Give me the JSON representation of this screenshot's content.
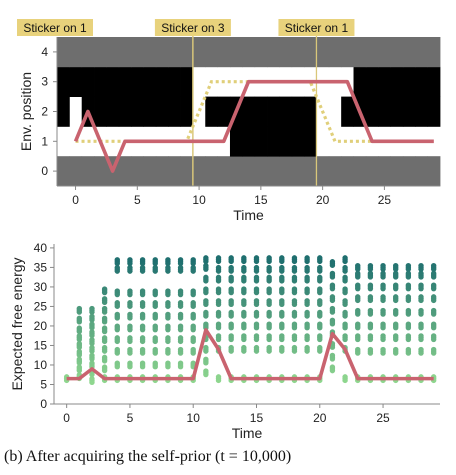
{
  "caption": "(b) After acquiring the self-prior (t = 10,000)",
  "colors": {
    "agent": "#c9636f",
    "target": "#e0cf7a",
    "sticker_line": "#d9c77a",
    "sticker_label_bg": "#e8d27c",
    "wall": "#6e6e6e",
    "obstacle": "#000000",
    "efe_low": "#8fd78f",
    "efe_high": "#1f6f6f"
  },
  "chart_data": [
    {
      "type": "heatmap",
      "name": "environment",
      "xlabel": "Time",
      "ylabel": "Env. position",
      "xlim": [
        -1.5,
        29.5
      ],
      "ylim": [
        -0.5,
        4.5
      ],
      "xticks": [
        0,
        5,
        10,
        15,
        20,
        25
      ],
      "yticks": [
        0,
        1,
        2,
        3,
        4
      ],
      "grid": false,
      "legend": "none",
      "cells": {
        "values_note": "rows = positions 0..4, columns = times -1..29; 0 = free, 1 = obstacle, 2 = wall",
        "rows": [
          [
            2,
            2,
            2,
            2,
            2,
            2,
            2,
            2,
            2,
            2,
            2,
            2,
            2,
            2,
            2,
            2,
            2,
            2,
            2,
            2,
            2,
            2,
            2,
            2,
            2,
            2,
            2,
            2,
            2,
            2,
            2
          ],
          [
            0,
            0,
            0,
            0,
            0,
            0,
            0,
            0,
            0,
            0,
            0,
            0,
            0,
            0,
            1,
            1,
            1,
            1,
            1,
            1,
            1,
            0,
            0,
            0,
            0,
            0,
            0,
            0,
            0,
            0,
            0
          ],
          [
            1,
            0,
            1,
            1,
            1,
            1,
            1,
            1,
            1,
            1,
            1,
            0,
            1,
            1,
            1,
            1,
            1,
            1,
            1,
            1,
            1,
            0,
            0,
            1,
            1,
            1,
            1,
            1,
            1,
            1,
            1
          ],
          [
            1,
            1,
            1,
            1,
            1,
            1,
            1,
            1,
            1,
            1,
            1,
            0,
            0,
            0,
            0,
            0,
            0,
            0,
            0,
            0,
            0,
            0,
            0,
            0,
            1,
            1,
            1,
            1,
            1,
            1,
            1
          ],
          [
            2,
            2,
            2,
            2,
            2,
            2,
            2,
            2,
            2,
            2,
            2,
            2,
            2,
            2,
            2,
            2,
            2,
            2,
            2,
            2,
            2,
            2,
            2,
            2,
            2,
            2,
            2,
            2,
            2,
            2,
            2
          ]
        ]
      },
      "series": [
        {
          "role": "agent",
          "x": [
            0,
            1,
            2,
            3,
            4,
            5,
            6,
            7,
            8,
            9,
            10,
            11,
            12,
            13,
            14,
            15,
            16,
            17,
            18,
            19,
            20,
            21,
            22,
            23,
            24,
            25,
            26,
            27,
            28,
            29
          ],
          "y": [
            1,
            2,
            1,
            0,
            1,
            1,
            1,
            1,
            1,
            1,
            1,
            1,
            1,
            2,
            3,
            3,
            3,
            3,
            3,
            3,
            3,
            3,
            3,
            2,
            1,
            1,
            1,
            1,
            1,
            1
          ]
        },
        {
          "role": "target",
          "x": [
            0,
            1,
            2,
            3,
            4,
            5,
            6,
            7,
            8,
            9,
            10,
            11,
            12,
            13,
            14,
            15,
            16,
            17,
            18,
            19,
            20,
            21,
            22,
            23,
            24,
            25,
            26,
            27,
            28,
            29
          ],
          "y": [
            1,
            1,
            1,
            1,
            1,
            1,
            1,
            1,
            1,
            1,
            2,
            3,
            3,
            3,
            3,
            3,
            3,
            3,
            3,
            3,
            2,
            1,
            1,
            1,
            1,
            1,
            1,
            1,
            1,
            1
          ]
        }
      ],
      "annotations": [
        {
          "x": 9.5,
          "label": "Sticker on 1"
        },
        {
          "x": 9.5,
          "label": "Sticker on 3"
        },
        {
          "x": 19.5,
          "label": "Sticker on 1"
        }
      ]
    },
    {
      "type": "scatter",
      "name": "expected-free-energy",
      "xlabel": "Time",
      "ylabel": "Expected free energy",
      "xlim": [
        -1,
        29.5
      ],
      "ylim": [
        0,
        41
      ],
      "xticks": [
        0,
        5,
        10,
        15,
        20,
        25
      ],
      "yticks": [
        0,
        5,
        10,
        15,
        20,
        25,
        30,
        35,
        40
      ],
      "grid": false,
      "legend": "none",
      "clusters": [
        {
          "t_start": 0,
          "t_end": 0,
          "levels": [
            6.5
          ]
        },
        {
          "t_start": 1,
          "t_end": 1,
          "levels": [
            7,
            9,
            11,
            13,
            15,
            17,
            19,
            21.5,
            24
          ]
        },
        {
          "t_start": 2,
          "t_end": 2,
          "levels": [
            6,
            8,
            10,
            12,
            14,
            16,
            18,
            20,
            22,
            24
          ]
        },
        {
          "t_start": 3,
          "t_end": 3,
          "levels": [
            6.5,
            9,
            11.5,
            14,
            16.5,
            19,
            21.5,
            24,
            26.5,
            29
          ]
        },
        {
          "t_start": 4,
          "t_end": 10,
          "levels": [
            6.5,
            10,
            13.5,
            16.5,
            19.5,
            22.5,
            25.5,
            28.5,
            34.5,
            36.5
          ]
        },
        {
          "t_start": 11,
          "t_end": 11,
          "levels": [
            8,
            11,
            14,
            17,
            20,
            23,
            26,
            29,
            32,
            35,
            37
          ]
        },
        {
          "t_start": 12,
          "t_end": 20,
          "levels": [
            6.5,
            14,
            17,
            20,
            23,
            26,
            29,
            32,
            34.5,
            37
          ]
        },
        {
          "t_start": 21,
          "t_end": 21,
          "levels": [
            9,
            12,
            15,
            18,
            21,
            24,
            27,
            30,
            33,
            36
          ]
        },
        {
          "t_start": 22,
          "t_end": 22,
          "levels": [
            6.5,
            14,
            17,
            20,
            23,
            26,
            29,
            32,
            34.5,
            37
          ]
        },
        {
          "t_start": 23,
          "t_end": 29,
          "levels": [
            6.5,
            13.5,
            17,
            20,
            23.5,
            27,
            30,
            33,
            35
          ]
        }
      ],
      "series": [
        {
          "role": "selected",
          "x": [
            0,
            1,
            2,
            3,
            4,
            5,
            6,
            7,
            8,
            9,
            10,
            11,
            12,
            13,
            14,
            15,
            16,
            17,
            18,
            19,
            20,
            21,
            22,
            23,
            24,
            25,
            26,
            27,
            28,
            29
          ],
          "y": [
            6.5,
            6.5,
            9,
            6.5,
            6.5,
            6.5,
            6.5,
            6.5,
            6.5,
            6.5,
            6.5,
            19,
            14,
            6.5,
            6.5,
            6.5,
            6.5,
            6.5,
            6.5,
            6.5,
            6.5,
            18,
            14,
            6.5,
            6.5,
            6.5,
            6.5,
            6.5,
            6.5,
            6.5
          ]
        }
      ]
    }
  ]
}
